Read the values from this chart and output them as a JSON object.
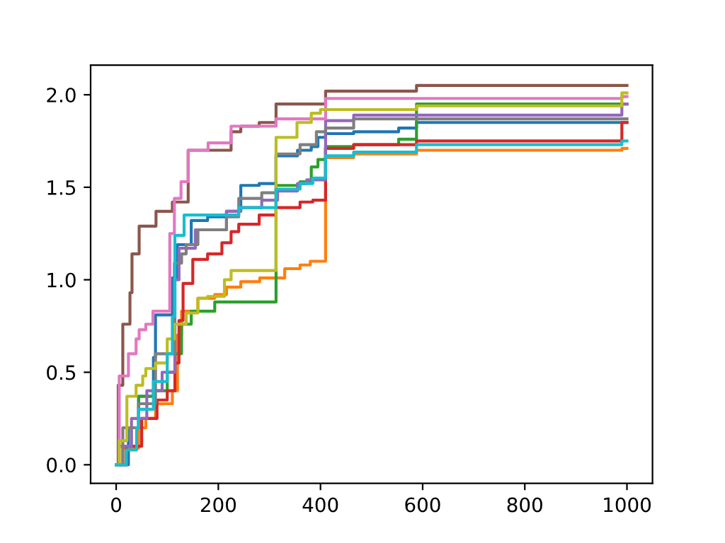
{
  "chart_data": {
    "type": "step",
    "xlim": [
      -50,
      1050
    ],
    "ylim": [
      -0.1,
      2.16
    ],
    "xticks": [
      0,
      200,
      400,
      600,
      800,
      1000
    ],
    "yticks": [
      {
        "value": 0,
        "label": "0.0"
      },
      {
        "value": 0.5,
        "label": "0.5"
      },
      {
        "value": 1,
        "label": "1.0"
      },
      {
        "value": 1.5,
        "label": "1.5"
      },
      {
        "value": 2,
        "label": "2.0"
      }
    ],
    "grid": false,
    "legend": false,
    "series": [
      {
        "color": "#1f77b4",
        "x": [
          0,
          24,
          44,
          73,
          77,
          110,
          120,
          147,
          179,
          216,
          244,
          280,
          313,
          355,
          382,
          395,
          410,
          465,
          553,
          588,
          1000
        ],
        "values": [
          0.0,
          0.2,
          0.37,
          0.58,
          0.81,
          1.01,
          1.19,
          1.32,
          1.34,
          1.37,
          1.51,
          1.52,
          1.67,
          1.7,
          1.72,
          1.77,
          1.79,
          1.8,
          1.82,
          1.85,
          1.85
        ]
      },
      {
        "color": "#ff7f0e",
        "x": [
          0,
          13,
          44,
          58,
          77,
          110,
          120,
          128,
          160,
          193,
          216,
          244,
          281,
          330,
          360,
          380,
          410,
          465,
          588,
          990,
          1000
        ],
        "values": [
          0.0,
          0.09,
          0.2,
          0.25,
          0.33,
          0.4,
          0.7,
          0.83,
          0.9,
          0.92,
          0.96,
          0.99,
          1.01,
          1.06,
          1.08,
          1.1,
          1.66,
          1.68,
          1.7,
          1.71,
          1.71
        ]
      },
      {
        "color": "#2ca02c",
        "x": [
          30,
          44,
          73,
          100,
          115,
          128,
          147,
          193,
          313,
          360,
          382,
          395,
          410,
          465,
          553,
          588,
          1000
        ],
        "values": [
          0.2,
          0.37,
          0.4,
          0.5,
          0.6,
          0.76,
          0.83,
          0.88,
          1.51,
          1.53,
          1.61,
          1.65,
          1.72,
          1.73,
          1.76,
          1.95,
          1.95
        ]
      },
      {
        "color": "#d62728",
        "x": [
          0,
          20,
          50,
          80,
          100,
          115,
          123,
          131,
          150,
          179,
          207,
          225,
          240,
          280,
          313,
          360,
          385,
          410,
          465,
          588,
          990,
          1000
        ],
        "values": [
          0.0,
          0.1,
          0.25,
          0.35,
          0.4,
          0.55,
          0.78,
          0.98,
          1.11,
          1.14,
          1.2,
          1.26,
          1.3,
          1.35,
          1.39,
          1.42,
          1.43,
          1.71,
          1.73,
          1.75,
          1.85,
          1.85
        ]
      },
      {
        "color": "#9467bd",
        "x": [
          0,
          5,
          30,
          60,
          90,
          115,
          123,
          155,
          216,
          244,
          285,
          316,
          355,
          373,
          410,
          465,
          990,
          1000
        ],
        "values": [
          0.0,
          0.1,
          0.25,
          0.4,
          0.5,
          1.0,
          1.17,
          1.27,
          1.37,
          1.39,
          1.43,
          1.48,
          1.52,
          1.54,
          1.86,
          1.89,
          1.95,
          1.95
        ]
      },
      {
        "color": "#8c564b",
        "x": [
          0,
          4,
          13,
          27,
          31,
          45,
          78,
          110,
          141,
          225,
          244,
          280,
          313,
          410,
          588,
          1000
        ],
        "values": [
          0.0,
          0.43,
          0.76,
          0.93,
          1.14,
          1.29,
          1.37,
          1.42,
          1.7,
          1.8,
          1.83,
          1.85,
          1.95,
          2.02,
          2.05,
          2.05
        ]
      },
      {
        "color": "#e377c2",
        "x": [
          0,
          6,
          24,
          39,
          45,
          58,
          72,
          105,
          114,
          127,
          141,
          180,
          225,
          313,
          410,
          990,
          1000
        ],
        "values": [
          0.0,
          0.48,
          0.6,
          0.68,
          0.73,
          0.76,
          0.83,
          1.25,
          1.44,
          1.53,
          1.7,
          1.74,
          1.83,
          1.87,
          1.98,
          1.99,
          1.99
        ]
      },
      {
        "color": "#7f7f7f",
        "x": [
          0,
          13,
          44,
          77,
          114,
          128,
          137,
          160,
          216,
          240,
          285,
          313,
          360,
          392,
          410,
          465,
          990,
          1000
        ],
        "values": [
          0.0,
          0.2,
          0.33,
          0.6,
          1.09,
          1.14,
          1.19,
          1.27,
          1.34,
          1.44,
          1.47,
          1.68,
          1.73,
          1.8,
          1.82,
          1.87,
          1.87,
          1.87
        ]
      },
      {
        "color": "#bcbd22",
        "x": [
          0,
          6,
          21,
          39,
          52,
          58,
          77,
          100,
          114,
          137,
          160,
          179,
          212,
          225,
          313,
          354,
          382,
          400,
          588,
          990,
          1000
        ],
        "values": [
          0.0,
          0.13,
          0.37,
          0.43,
          0.48,
          0.52,
          0.55,
          0.68,
          0.76,
          0.82,
          0.9,
          0.91,
          1.0,
          1.05,
          1.77,
          1.85,
          1.9,
          1.92,
          1.94,
          2.01,
          2.01
        ]
      },
      {
        "color": "#17becf",
        "x": [
          0,
          20,
          40,
          44,
          73,
          100,
          110,
          115,
          133,
          240,
          313,
          360,
          385,
          410,
          465,
          588,
          990,
          1000
        ],
        "values": [
          0.0,
          0.08,
          0.2,
          0.3,
          0.45,
          0.6,
          0.8,
          1.24,
          1.35,
          1.39,
          1.49,
          1.52,
          1.55,
          1.67,
          1.69,
          1.73,
          1.75,
          1.75
        ]
      }
    ]
  }
}
